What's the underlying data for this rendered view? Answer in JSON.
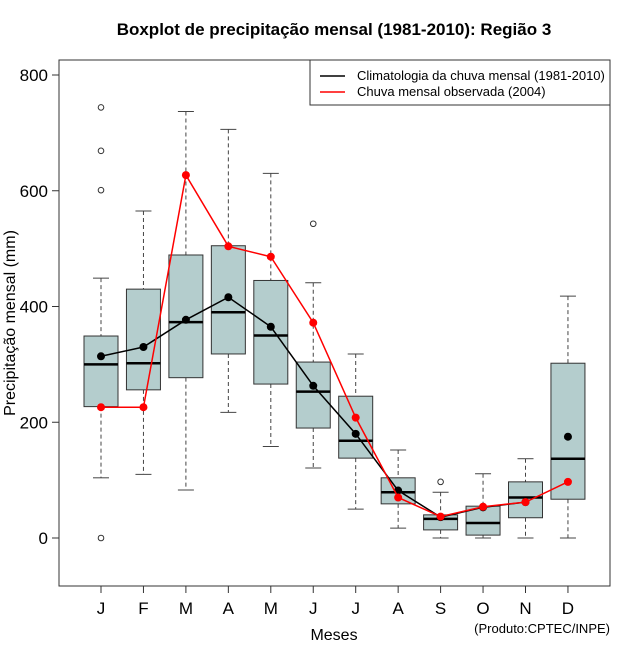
{
  "chart_data": {
    "type": "boxplot",
    "title": "Boxplot de precipitação mensal (1981-2010): Região 3",
    "xlabel": "Meses",
    "ylabel": "Precipitação mensal (mm)",
    "ylim": [
      -85,
      830
    ],
    "yticks": [
      0,
      200,
      400,
      600,
      800
    ],
    "categories": [
      "J",
      "F",
      "M",
      "A",
      "M",
      "J",
      "J",
      "A",
      "S",
      "O",
      "N",
      "D"
    ],
    "boxes": [
      {
        "whisker_low": 104,
        "q1": 227,
        "median": 300,
        "q3": 349,
        "whisker_high": 449,
        "outliers": [
          744,
          669,
          601,
          0
        ]
      },
      {
        "whisker_low": 110,
        "q1": 256,
        "median": 302,
        "q3": 430,
        "whisker_high": 565,
        "outliers": []
      },
      {
        "whisker_low": 83,
        "q1": 277,
        "median": 373,
        "q3": 489,
        "whisker_high": 737,
        "outliers": []
      },
      {
        "whisker_low": 217,
        "q1": 318,
        "median": 390,
        "q3": 505,
        "whisker_high": 706,
        "outliers": []
      },
      {
        "whisker_low": 158,
        "q1": 266,
        "median": 350,
        "q3": 445,
        "whisker_high": 630,
        "outliers": []
      },
      {
        "whisker_low": 121,
        "q1": 190,
        "median": 253,
        "q3": 304,
        "whisker_high": 441,
        "outliers": [
          543
        ]
      },
      {
        "whisker_low": 50,
        "q1": 138,
        "median": 168,
        "q3": 245,
        "whisker_high": 318,
        "outliers": []
      },
      {
        "whisker_low": 17,
        "q1": 59,
        "median": 79,
        "q3": 104,
        "whisker_high": 152,
        "outliers": []
      },
      {
        "whisker_low": 0,
        "q1": 14,
        "median": 33,
        "q3": 40,
        "whisker_high": 79,
        "outliers": [
          97
        ]
      },
      {
        "whisker_low": 0,
        "q1": 5,
        "median": 26,
        "q3": 55,
        "whisker_high": 111,
        "outliers": []
      },
      {
        "whisker_low": 0,
        "q1": 35,
        "median": 70,
        "q3": 97,
        "whisker_high": 137,
        "outliers": []
      },
      {
        "whisker_low": 0,
        "q1": 67,
        "median": 137,
        "q3": 302,
        "whisker_high": 418,
        "outliers": []
      }
    ],
    "series": [
      {
        "name": "Climatologia da chuva mensal (1981-2010)",
        "color": "#000000",
        "values": [
          314,
          330,
          377,
          416,
          365,
          263,
          180,
          82,
          36,
          53,
          62,
          175
        ],
        "connected_until_index": 10
      },
      {
        "name": "Chuva mensal observada (2004)",
        "color": "#ff0000",
        "values": [
          226,
          226,
          627,
          504,
          486,
          372,
          208,
          70,
          37,
          54,
          62,
          97
        ],
        "connected_until_index": 11
      }
    ],
    "legend": {
      "position": "top-right",
      "entries": [
        {
          "label": "Climatologia da chuva mensal (1981-2010)",
          "color": "#000000"
        },
        {
          "label": "Chuva mensal observada (2004)",
          "color": "#ff0000"
        }
      ]
    },
    "box_fill": "#b4cdcd",
    "box_border": "#333333",
    "grid": false
  },
  "credit": "(Produto:CPTEC/INPE)"
}
